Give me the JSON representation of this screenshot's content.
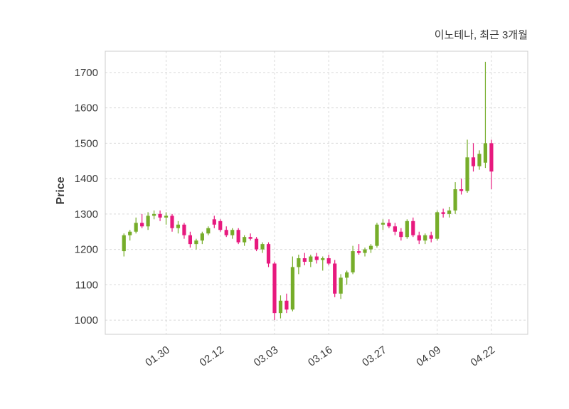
{
  "chart_data": {
    "type": "candlestick",
    "title": "이노테나, 최근 3개월",
    "ylabel": "Price",
    "xlabel": "",
    "grid": true,
    "grid_style": "dashed",
    "legend": false,
    "ylim": [
      960,
      1760
    ],
    "y_ticks": [
      1000,
      1100,
      1200,
      1300,
      1400,
      1500,
      1600,
      1700
    ],
    "x_tick_labels": [
      "01.30",
      "02.12",
      "03.03",
      "03.16",
      "03.27",
      "04.09",
      "04.22"
    ],
    "x_tick_indices": [
      7,
      16,
      25,
      34,
      43,
      52,
      61
    ],
    "colors": {
      "up": "#76ad2a",
      "down": "#e7197e",
      "grid": "#d9d9d9",
      "border": "#cccccc",
      "text": "#3a3a3a",
      "background": "#ffffff"
    },
    "ohlc_format": [
      "open",
      "high",
      "low",
      "close"
    ],
    "ohlc": [
      [
        1195,
        1245,
        1180,
        1240
      ],
      [
        1240,
        1255,
        1225,
        1250
      ],
      [
        1250,
        1290,
        1245,
        1275
      ],
      [
        1275,
        1300,
        1260,
        1265
      ],
      [
        1265,
        1305,
        1255,
        1295
      ],
      [
        1295,
        1310,
        1285,
        1300
      ],
      [
        1300,
        1310,
        1280,
        1290
      ],
      [
        1290,
        1305,
        1270,
        1295
      ],
      [
        1295,
        1300,
        1250,
        1260
      ],
      [
        1260,
        1280,
        1245,
        1270
      ],
      [
        1270,
        1275,
        1230,
        1240
      ],
      [
        1240,
        1250,
        1205,
        1215
      ],
      [
        1215,
        1230,
        1200,
        1225
      ],
      [
        1225,
        1250,
        1215,
        1245
      ],
      [
        1245,
        1265,
        1240,
        1260
      ],
      [
        1285,
        1295,
        1260,
        1270
      ],
      [
        1280,
        1285,
        1250,
        1255
      ],
      [
        1255,
        1265,
        1235,
        1240
      ],
      [
        1240,
        1260,
        1230,
        1255
      ],
      [
        1255,
        1260,
        1215,
        1220
      ],
      [
        1220,
        1240,
        1210,
        1235
      ],
      [
        1235,
        1245,
        1225,
        1230
      ],
      [
        1230,
        1235,
        1195,
        1200
      ],
      [
        1200,
        1220,
        1190,
        1215
      ],
      [
        1215,
        1220,
        1150,
        1160
      ],
      [
        1160,
        1165,
        1000,
        1020
      ],
      [
        1020,
        1070,
        1005,
        1055
      ],
      [
        1055,
        1075,
        1020,
        1030
      ],
      [
        1030,
        1180,
        1025,
        1150
      ],
      [
        1150,
        1185,
        1130,
        1175
      ],
      [
        1175,
        1190,
        1155,
        1165
      ],
      [
        1165,
        1185,
        1150,
        1180
      ],
      [
        1180,
        1190,
        1160,
        1170
      ],
      [
        1170,
        1180,
        1140,
        1175
      ],
      [
        1175,
        1185,
        1155,
        1160
      ],
      [
        1160,
        1170,
        1065,
        1075
      ],
      [
        1075,
        1130,
        1060,
        1120
      ],
      [
        1120,
        1140,
        1100,
        1135
      ],
      [
        1135,
        1210,
        1130,
        1195
      ],
      [
        1195,
        1215,
        1185,
        1190
      ],
      [
        1190,
        1205,
        1180,
        1200
      ],
      [
        1200,
        1215,
        1190,
        1210
      ],
      [
        1210,
        1275,
        1205,
        1270
      ],
      [
        1270,
        1285,
        1255,
        1275
      ],
      [
        1275,
        1285,
        1260,
        1265
      ],
      [
        1265,
        1275,
        1240,
        1250
      ],
      [
        1250,
        1260,
        1225,
        1235
      ],
      [
        1235,
        1285,
        1230,
        1280
      ],
      [
        1280,
        1290,
        1235,
        1240
      ],
      [
        1240,
        1250,
        1215,
        1225
      ],
      [
        1225,
        1245,
        1215,
        1240
      ],
      [
        1240,
        1250,
        1220,
        1230
      ],
      [
        1230,
        1310,
        1225,
        1305
      ],
      [
        1305,
        1315,
        1290,
        1300
      ],
      [
        1300,
        1320,
        1290,
        1310
      ],
      [
        1310,
        1390,
        1300,
        1370
      ],
      [
        1370,
        1400,
        1355,
        1365
      ],
      [
        1365,
        1510,
        1360,
        1460
      ],
      [
        1460,
        1500,
        1420,
        1435
      ],
      [
        1435,
        1480,
        1425,
        1470
      ],
      [
        1445,
        1730,
        1430,
        1500
      ],
      [
        1500,
        1510,
        1370,
        1420
      ]
    ]
  }
}
